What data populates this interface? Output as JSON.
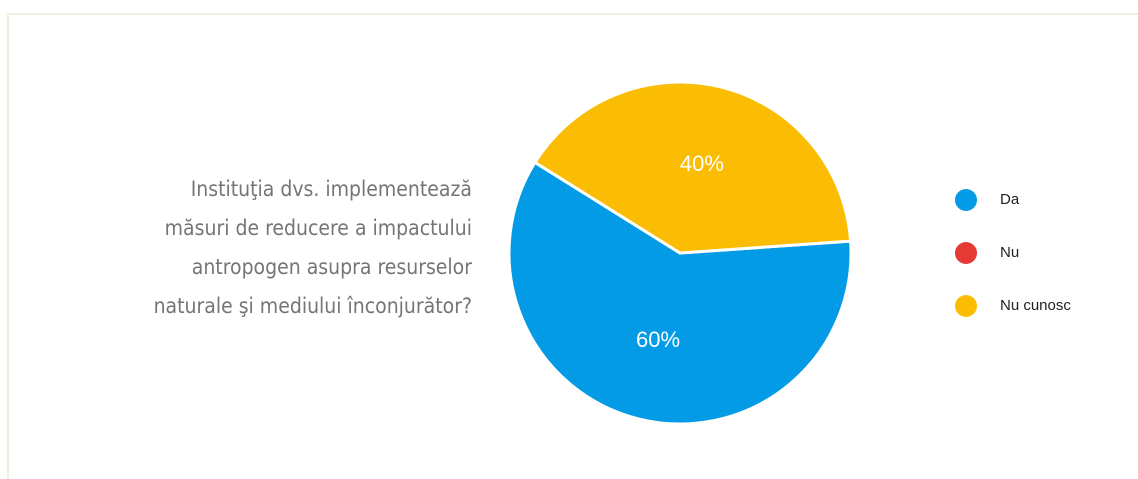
{
  "chart_data": {
    "type": "pie",
    "title": [
      "Instituţia dvs. implementează",
      "măsuri de reducere a impactului",
      "antropogen asupra resurselor",
      "naturale şi mediului înconjurător?"
    ],
    "categories": [
      "Da",
      "Nu",
      "Nu cunosc"
    ],
    "values": [
      60,
      0,
      40
    ],
    "value_labels": [
      "60%",
      null,
      "40%"
    ],
    "colors": [
      "#039be5",
      "#e53935",
      "#fbbc04"
    ],
    "legend": "right"
  }
}
